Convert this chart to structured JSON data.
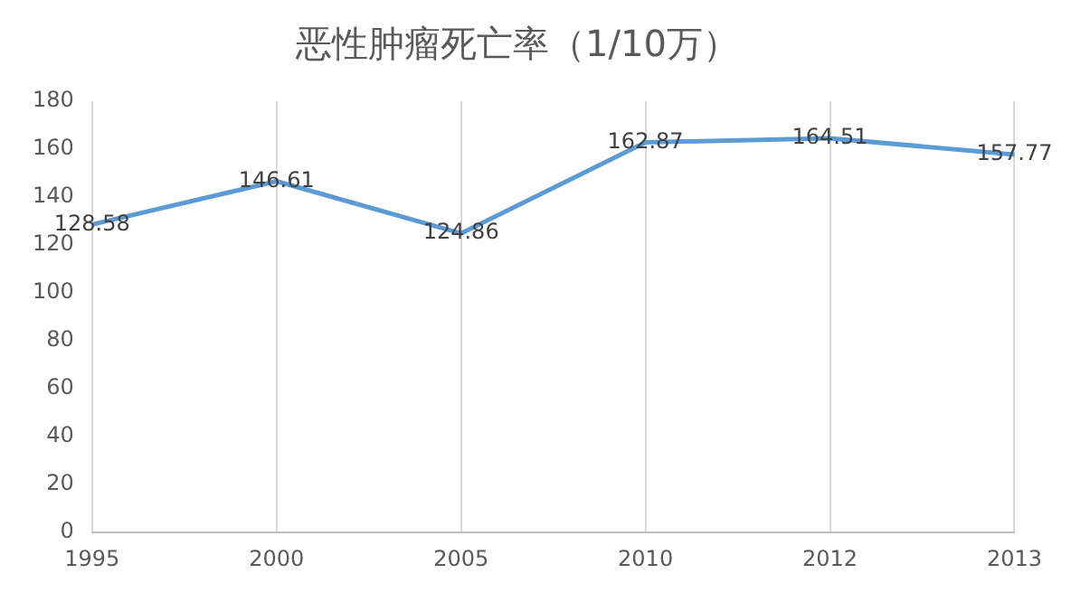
{
  "chart_data": {
    "type": "line",
    "title": "恶性肿瘤死亡率（1/10万）",
    "categories": [
      "1995",
      "2000",
      "2005",
      "2010",
      "2012",
      "2013"
    ],
    "series": [
      {
        "color": "#5b9bd5",
        "values": [
          128.58,
          146.61,
          124.86,
          162.87,
          164.51,
          157.77
        ]
      }
    ],
    "ylim": [
      0,
      180
    ],
    "yticks": [
      0,
      20,
      40,
      60,
      80,
      100,
      120,
      140,
      160,
      180
    ],
    "grid": "x",
    "legend": false,
    "marker": "none",
    "data_labels": true
  }
}
